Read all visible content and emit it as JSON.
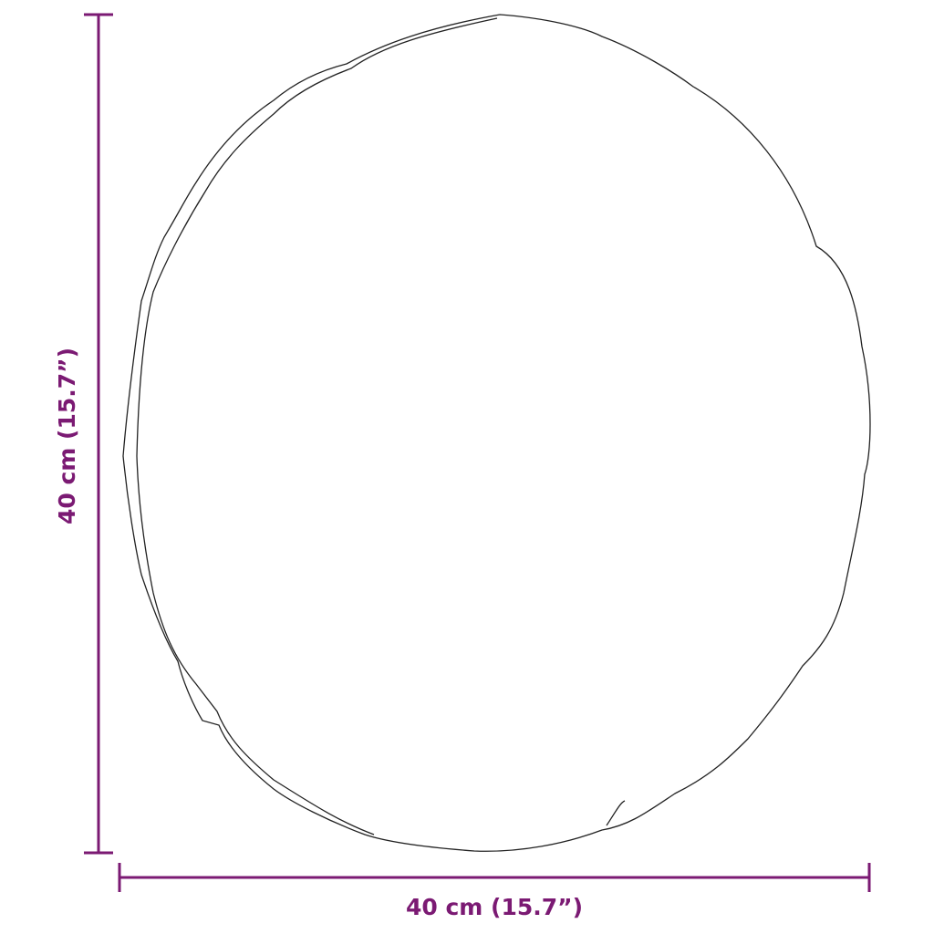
{
  "dimensions": {
    "height_label": "40 cm (15.7”)",
    "width_label": "40 cm (15.7”)"
  },
  "colors": {
    "dimension": "#7b1a73",
    "outline": "#222222"
  }
}
